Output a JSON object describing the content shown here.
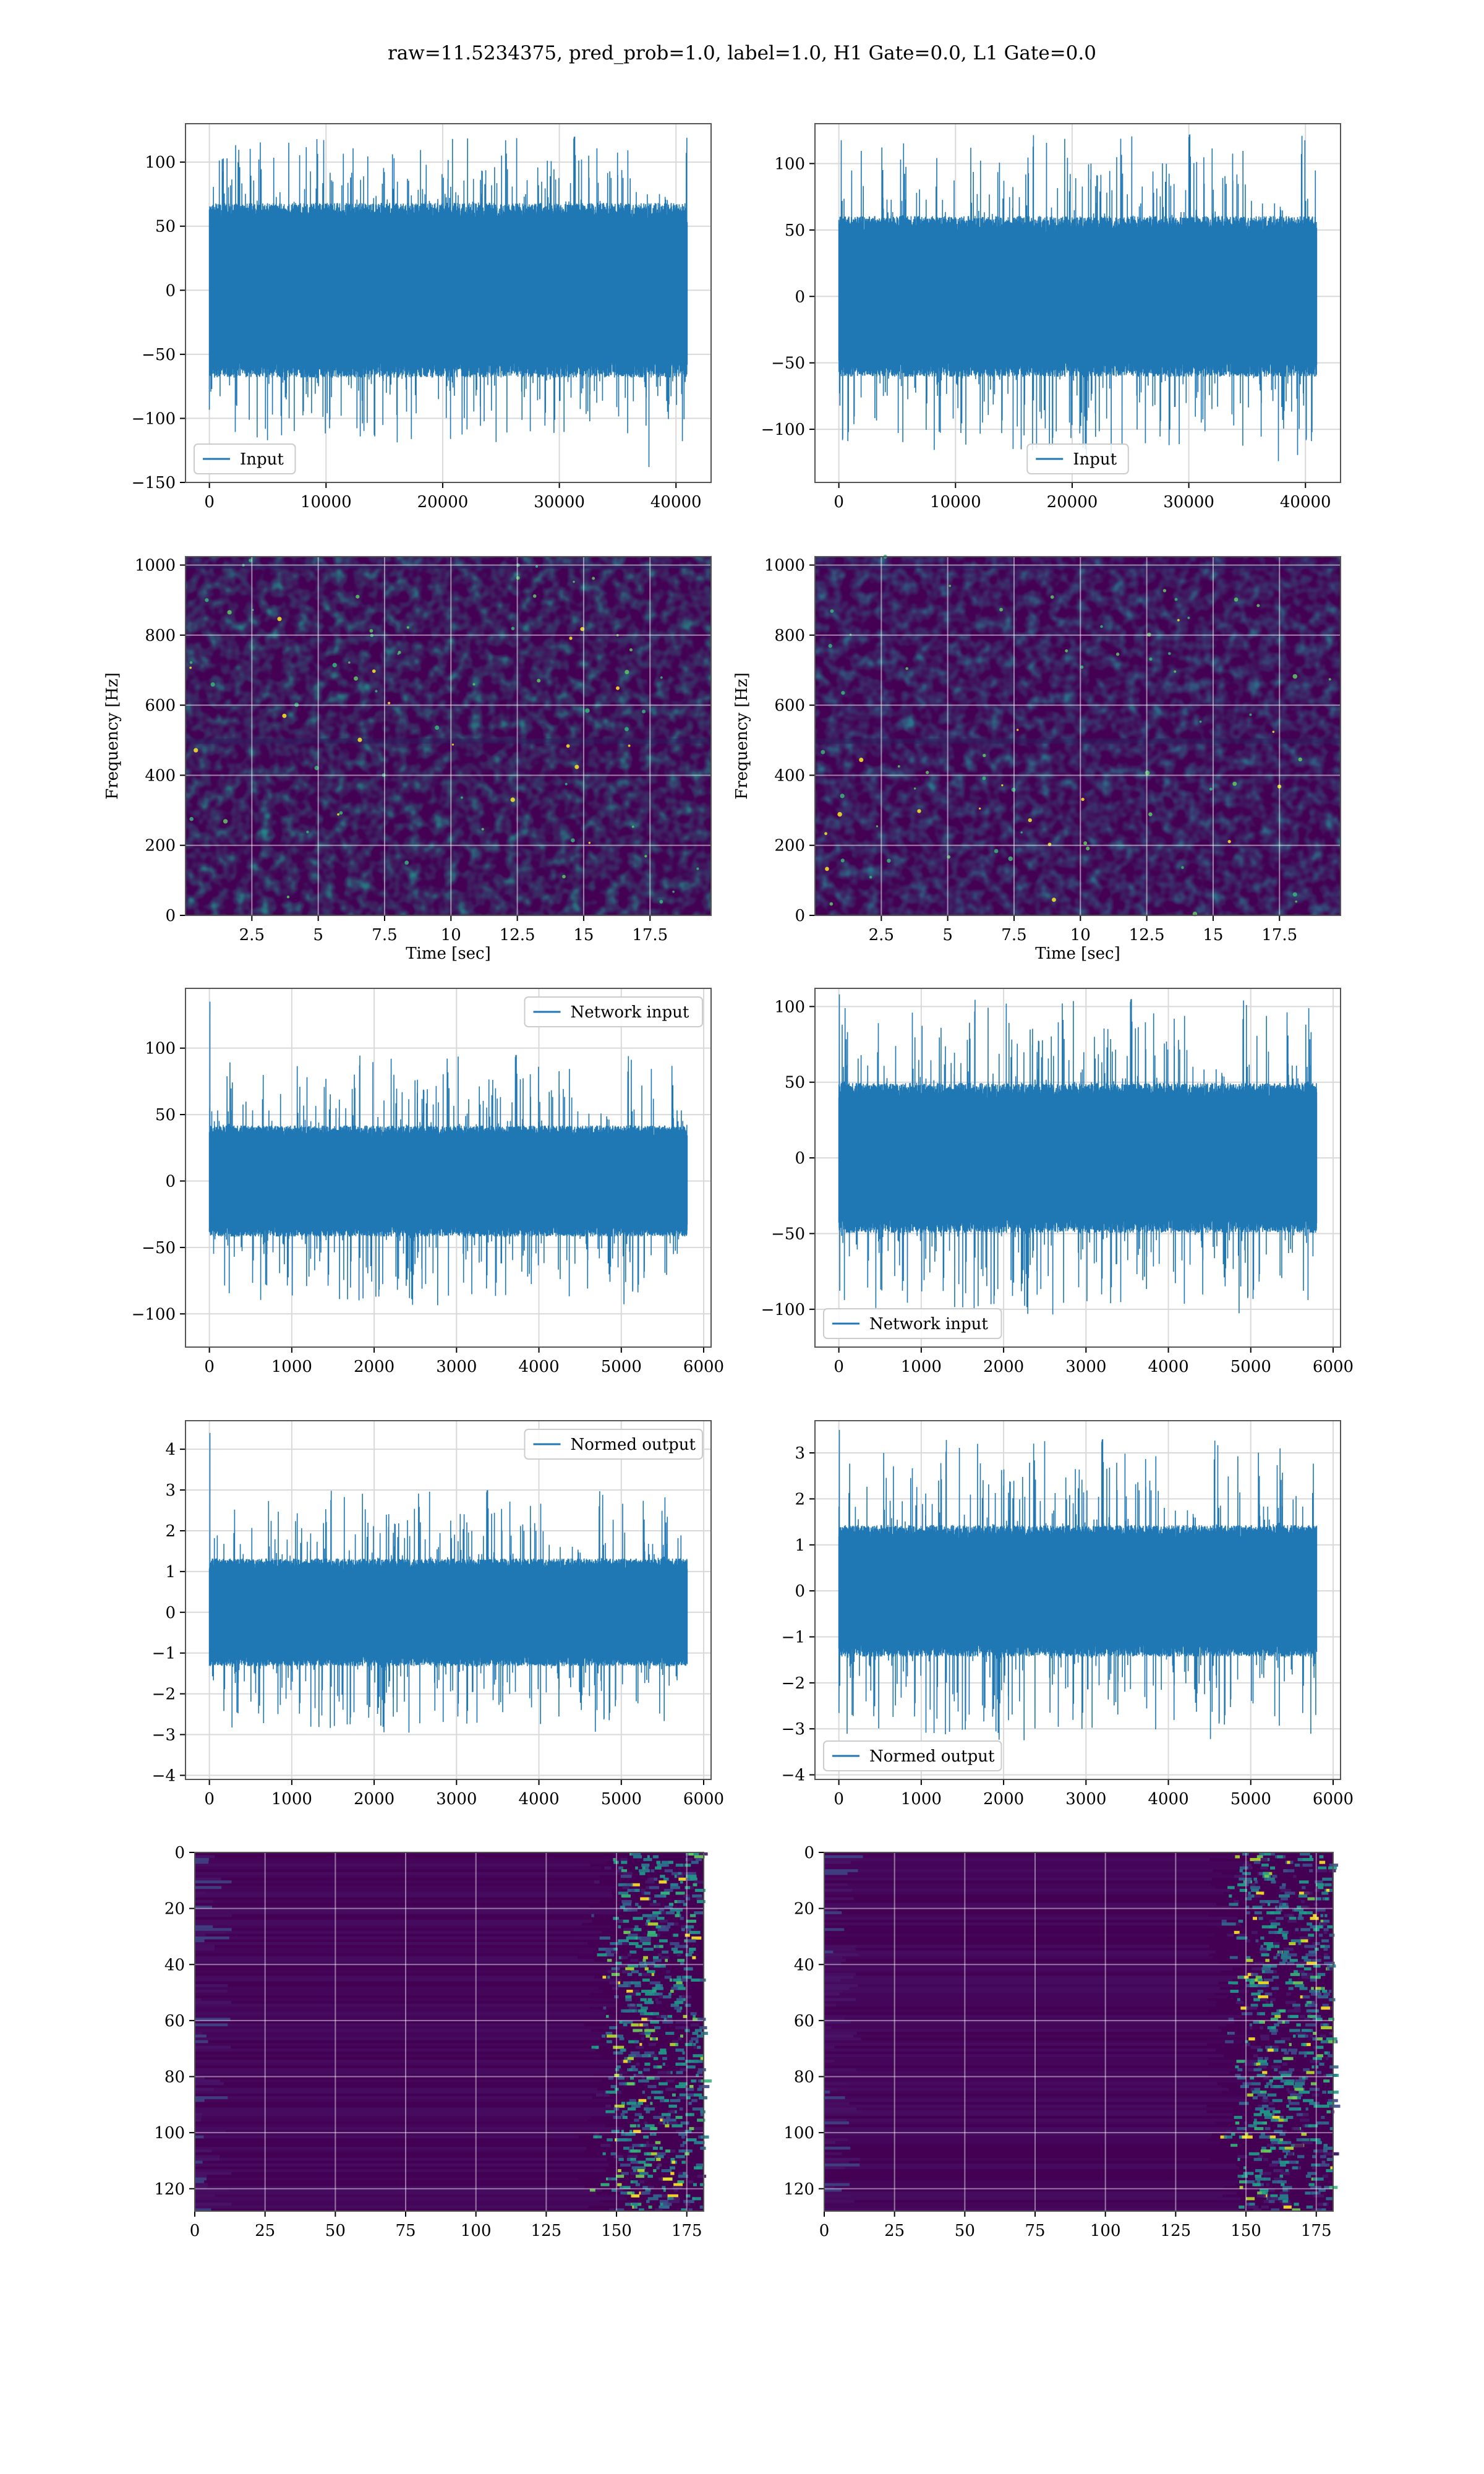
{
  "figure": {
    "title": "raw=11.5234375, pred_prob=1.0, label=1.0, H1 Gate=0.0, L1 Gate=0.0"
  },
  "colors": {
    "line": "#1f77b4",
    "grid": "#d9d9d9",
    "spine": "#555555",
    "viridis_low": "#440154",
    "viridis_mid": "#21918c",
    "viridis_high": "#fde725"
  },
  "chart_data": [
    {
      "id": "h1-input",
      "type": "line",
      "series": [
        {
          "name": "Input",
          "summary": "dense noise strain, amplitude about ±60, peaks about ±120"
        }
      ],
      "x_range": [
        0,
        40960
      ],
      "xlim": [
        -2048,
        43008
      ],
      "ylim": [
        -150,
        130
      ],
      "x_ticks": [
        0,
        10000,
        20000,
        30000,
        40000
      ],
      "y_ticks": [
        -150,
        -100,
        -50,
        0,
        50,
        100
      ],
      "envelope": {
        "core": 62,
        "peak": 120,
        "min_extreme": -138
      },
      "grid": true,
      "legend": "lower-left"
    },
    {
      "id": "l1-input",
      "type": "line",
      "series": [
        {
          "name": "Input",
          "summary": "dense noise strain, amplitude about ±55, peaks about ±120"
        }
      ],
      "x_range": [
        0,
        40960
      ],
      "xlim": [
        -2048,
        43008
      ],
      "ylim": [
        -140,
        130
      ],
      "x_ticks": [
        0,
        10000,
        20000,
        30000,
        40000
      ],
      "y_ticks": [
        -100,
        -50,
        0,
        50,
        100
      ],
      "envelope": {
        "core": 55,
        "peak": 122,
        "min_extreme": -124
      },
      "grid": true,
      "legend": "lower-center"
    },
    {
      "id": "h1-spectrogram",
      "type": "heatmap",
      "xlabel": "Time [sec]",
      "ylabel": "Frequency [Hz]",
      "xlim": [
        0,
        19.8
      ],
      "ylim": [
        0,
        1024
      ],
      "x_ticks": [
        2.5,
        5.0,
        7.5,
        10.0,
        12.5,
        15.0,
        17.5
      ],
      "y_ticks": [
        0,
        200,
        400,
        600,
        800,
        1000
      ],
      "colormap": "viridis",
      "grid": true
    },
    {
      "id": "l1-spectrogram",
      "type": "heatmap",
      "xlabel": "Time [sec]",
      "ylabel": "Frequency [Hz]",
      "xlim": [
        0,
        19.8
      ],
      "ylim": [
        0,
        1024
      ],
      "x_ticks": [
        2.5,
        5.0,
        7.5,
        10.0,
        12.5,
        15.0,
        17.5
      ],
      "y_ticks": [
        0,
        200,
        400,
        600,
        800,
        1000
      ],
      "colormap": "viridis",
      "grid": true
    },
    {
      "id": "h1-network-input",
      "type": "line",
      "series": [
        {
          "name": "Network input",
          "summary": "whitened strain, amplitude about ±40, peaks about ±100, spike 135 at start"
        }
      ],
      "x_range": [
        0,
        5800
      ],
      "xlim": [
        -290,
        6090
      ],
      "ylim": [
        -125,
        145
      ],
      "x_ticks": [
        0,
        1000,
        2000,
        3000,
        4000,
        5000,
        6000
      ],
      "y_ticks": [
        -100,
        -50,
        0,
        50,
        100
      ],
      "envelope": {
        "core": 38,
        "peak": 95,
        "spike": 135
      },
      "grid": true,
      "legend": "upper-right"
    },
    {
      "id": "l1-network-input",
      "type": "line",
      "series": [
        {
          "name": "Network input",
          "summary": "whitened strain, amplitude about ±45, peaks about ±105"
        }
      ],
      "x_range": [
        0,
        5800
      ],
      "xlim": [
        -290,
        6090
      ],
      "ylim": [
        -125,
        112
      ],
      "x_ticks": [
        0,
        1000,
        2000,
        3000,
        4000,
        5000,
        6000
      ],
      "y_ticks": [
        -100,
        -50,
        0,
        50,
        100
      ],
      "envelope": {
        "core": 45,
        "peak": 105,
        "spike": 108
      },
      "grid": true,
      "legend": "lower-left"
    },
    {
      "id": "h1-normed-output",
      "type": "line",
      "series": [
        {
          "name": "Normed output",
          "summary": "normalised output, amplitude about ±1.2, peaks about ±3, spike 4.4 at start"
        }
      ],
      "x_range": [
        0,
        5800
      ],
      "xlim": [
        -290,
        6090
      ],
      "ylim": [
        -4.1,
        4.7
      ],
      "x_ticks": [
        0,
        1000,
        2000,
        3000,
        4000,
        5000,
        6000
      ],
      "y_ticks": [
        -4,
        -3,
        -2,
        -1,
        0,
        1,
        2,
        3,
        4
      ],
      "envelope": {
        "core": 1.2,
        "peak": 3.0,
        "spike": 4.4
      },
      "grid": true,
      "legend": "upper-right"
    },
    {
      "id": "l1-normed-output",
      "type": "line",
      "series": [
        {
          "name": "Normed output",
          "summary": "normalised output, amplitude about ±1.3, peaks about ±3.3"
        }
      ],
      "x_range": [
        0,
        5800
      ],
      "xlim": [
        -290,
        6090
      ],
      "ylim": [
        -4.1,
        3.7
      ],
      "x_ticks": [
        0,
        1000,
        2000,
        3000,
        4000,
        5000,
        6000
      ],
      "y_ticks": [
        -4,
        -3,
        -2,
        -1,
        0,
        1,
        2,
        3
      ],
      "envelope": {
        "core": 1.3,
        "peak": 3.3,
        "spike": 3.5
      },
      "grid": true,
      "legend": "lower-left"
    },
    {
      "id": "h1-feature-map",
      "type": "heatmap",
      "xlim": [
        0,
        181
      ],
      "ylim": [
        128,
        0
      ],
      "x_ticks": [
        0,
        25,
        50,
        75,
        100,
        125,
        150,
        175
      ],
      "y_ticks": [
        0,
        20,
        40,
        60,
        80,
        100,
        120
      ],
      "colormap": "viridis",
      "grid": true
    },
    {
      "id": "l1-feature-map",
      "type": "heatmap",
      "xlim": [
        0,
        181
      ],
      "ylim": [
        128,
        0
      ],
      "x_ticks": [
        0,
        25,
        50,
        75,
        100,
        125,
        150,
        175
      ],
      "y_ticks": [
        0,
        20,
        40,
        60,
        80,
        100,
        120
      ],
      "colormap": "viridis",
      "grid": true
    }
  ]
}
